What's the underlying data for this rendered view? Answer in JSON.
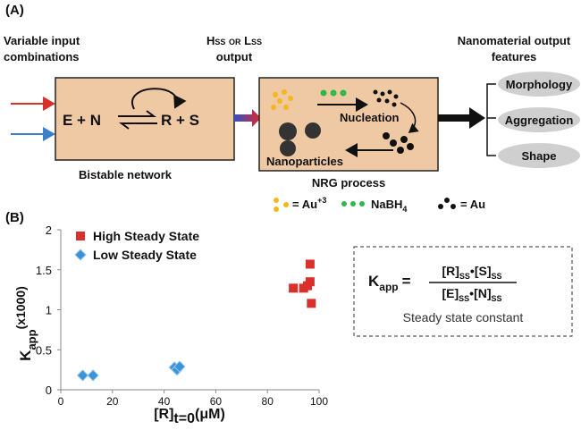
{
  "diagram": {
    "panel_a": "(A)",
    "panel_b": "(B)",
    "input_label": [
      "Variable input",
      "combinations"
    ],
    "network": {
      "left": "E + N",
      "right": "R + S",
      "caption": "Bistable network"
    },
    "output_label": [
      "Hss or Lss",
      "output"
    ],
    "process": {
      "nucleation": "Nucleation",
      "nanoparticles": "Nanoparticles",
      "caption": "NRG process"
    },
    "reagents": [
      {
        "text": "= Au",
        "sup": "+3"
      },
      {
        "text": "NaBH",
        "sub": "4"
      },
      {
        "text": "= Au"
      }
    ],
    "features_label": [
      "Nanomaterial output",
      "features"
    ],
    "features": [
      "Morphology",
      "Aggregation",
      "Shape"
    ],
    "formula": {
      "lhs": "K",
      "lhs_sub": "app",
      "eq": "=",
      "num": [
        "[R]",
        "SS",
        "•",
        "[S]",
        "SS"
      ],
      "den": [
        "[E]",
        "SS",
        "•",
        "[N]",
        "SS"
      ],
      "caption": "Steady state constant"
    }
  },
  "chart_data": {
    "type": "scatter",
    "x_label": {
      "main": "[R]",
      "sub": "t=0",
      "unit": "(μM)"
    },
    "y_label": {
      "main": "K",
      "sub": "app",
      "unit": "(x1000)"
    },
    "xlim": [
      0,
      100
    ],
    "xticks": [
      0,
      20,
      40,
      60,
      80,
      100
    ],
    "ylim": [
      0,
      2
    ],
    "yticks": [
      0,
      0.5,
      1,
      1.5,
      2
    ],
    "series": [
      {
        "name": "High Steady State",
        "color": "#d9302c",
        "marker": "square",
        "x": [
          90,
          94,
          95.5,
          96.5,
          96.5,
          97
        ],
        "values": [
          1.27,
          1.27,
          1.3,
          1.35,
          1.57,
          1.08
        ]
      },
      {
        "name": "Low Steady State",
        "color": "#3b93d8",
        "marker": "diamond",
        "x": [
          8.5,
          12.5,
          44,
          45,
          46
        ],
        "values": [
          0.18,
          0.18,
          0.28,
          0.25,
          0.29
        ]
      }
    ]
  }
}
